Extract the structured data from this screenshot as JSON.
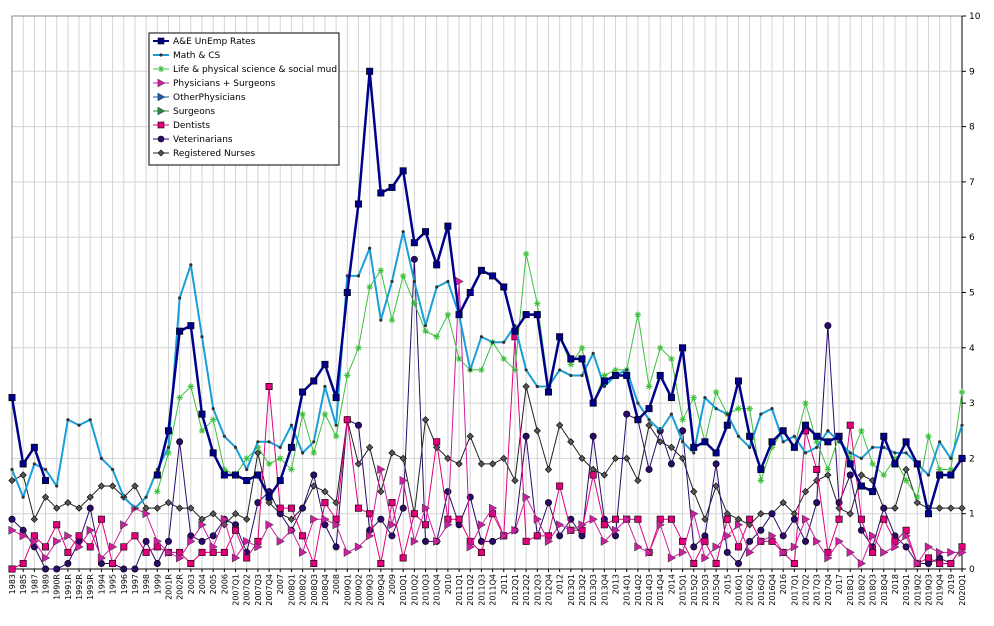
{
  "chart_data": {
    "type": "line",
    "title": "",
    "xlabel": "",
    "ylabel": "",
    "ylim": [
      0,
      10
    ],
    "y_ticks": [
      "0",
      "1",
      "2",
      "3",
      "4",
      "5",
      "6",
      "7",
      "8",
      "9",
      "10"
    ],
    "y_axis_side": "right",
    "grid": true,
    "legend_position": "top-left",
    "x_tick_labels": [
      "1983",
      "1985",
      "1987",
      "1989",
      "1990R",
      "1991R",
      "1992R",
      "1993R",
      "1994",
      "1995",
      "1996",
      "1997",
      "1998",
      "1999",
      "2001R",
      "2002R",
      "2003",
      "2004",
      "2005",
      "2006",
      "2007Q1",
      "2007Q2",
      "2007Q3",
      "2007Q4",
      "2007",
      "2008Q1",
      "2008Q2",
      "2008Q3",
      "2008Q4",
      "2008",
      "2009Q1",
      "2009Q2",
      "2009Q3",
      "2009Q4",
      "2009",
      "2010Q1",
      "2010Q2",
      "2010Q3",
      "2010Q4",
      "2010",
      "2011Q1",
      "2011Q2",
      "2011Q3",
      "2011Q4",
      "2011",
      "2012Q1",
      "2012Q2",
      "2012Q3",
      "2012Q4",
      "2012",
      "2013Q1",
      "2013Q2",
      "2013Q3",
      "2013Q4",
      "2013",
      "2014Q1",
      "2014Q2",
      "2014Q3",
      "2014Q4",
      "2014",
      "2015Q1",
      "2015Q2",
      "2015Q3",
      "2015Q4",
      "2015",
      "2016Q1",
      "2016Q2",
      "2016Q3",
      "2016Q4",
      "2016",
      "2017Q1",
      "2017Q2",
      "2017Q3",
      "2017Q4",
      "2017",
      "2018Q1",
      "2018Q2",
      "2018Q3",
      "2018Q4",
      "2018",
      "2019Q1",
      "2019Q2",
      "2019Q3",
      "2019Q4",
      "2019",
      "2020Q1"
    ],
    "series": [
      {
        "name": "A&E UnEmp Rates",
        "color": "#00008b",
        "marker": "square",
        "width": 2.5,
        "values": [
          3.1,
          1.9,
          2.2,
          1.6,
          null,
          null,
          null,
          null,
          null,
          null,
          null,
          null,
          null,
          1.7,
          2.5,
          4.3,
          4.4,
          2.8,
          2.1,
          1.7,
          1.7,
          1.6,
          1.7,
          1.3,
          1.6,
          2.2,
          3.2,
          3.4,
          3.7,
          3.1,
          5.0,
          6.6,
          9.0,
          6.8,
          6.9,
          7.2,
          5.9,
          6.1,
          5.5,
          6.2,
          4.6,
          5.0,
          5.4,
          5.3,
          5.1,
          4.3,
          4.6,
          4.6,
          3.2,
          4.2,
          3.8,
          3.8,
          3.0,
          3.4,
          3.5,
          3.5,
          2.7,
          2.9,
          3.5,
          3.1,
          4.0,
          2.2,
          2.3,
          2.1,
          2.6,
          3.4,
          2.4,
          1.8,
          2.3,
          2.5,
          2.2,
          2.6,
          2.4,
          2.3,
          2.4,
          1.9,
          1.5,
          1.4,
          2.4,
          1.9,
          2.3,
          1.9,
          1.0,
          1.7,
          1.7,
          2.0
        ]
      },
      {
        "name": "Math & CS",
        "color": "#1a9ed8",
        "marker": "dot",
        "width": 2,
        "values": [
          1.8,
          1.3,
          1.9,
          1.8,
          1.5,
          2.7,
          2.6,
          2.7,
          2.0,
          1.8,
          1.3,
          1.1,
          1.3,
          1.8,
          2.2,
          4.9,
          5.5,
          4.2,
          2.9,
          2.4,
          2.2,
          1.8,
          2.3,
          2.3,
          2.2,
          2.6,
          2.1,
          2.3,
          3.3,
          2.6,
          5.3,
          5.3,
          5.8,
          4.5,
          5.2,
          6.1,
          5.2,
          4.4,
          5.1,
          5.2,
          4.6,
          3.6,
          4.2,
          4.1,
          4.1,
          4.4,
          3.6,
          3.3,
          3.3,
          3.6,
          3.5,
          3.5,
          3.9,
          3.3,
          3.5,
          3.6,
          3.0,
          2.7,
          2.5,
          2.8,
          2.3,
          2.1,
          3.1,
          2.9,
          2.8,
          2.4,
          2.2,
          2.8,
          2.9,
          2.3,
          2.4,
          2.1,
          2.2,
          2.5,
          2.3,
          2.1,
          2.0,
          2.2,
          2.2,
          2.1,
          2.1,
          1.9,
          1.7,
          2.3,
          2.0,
          2.6
        ]
      },
      {
        "name": "Life & physical science & social mud",
        "color": "#3cbf3c",
        "marker": "star",
        "width": 1,
        "values": [
          null,
          null,
          null,
          null,
          null,
          null,
          null,
          null,
          null,
          null,
          null,
          null,
          null,
          1.4,
          2.1,
          3.1,
          3.3,
          2.5,
          2.7,
          1.8,
          1.7,
          2.0,
          2.2,
          1.9,
          2.0,
          1.8,
          2.8,
          2.1,
          2.8,
          2.4,
          3.5,
          4.0,
          5.1,
          5.4,
          4.5,
          5.3,
          4.8,
          4.3,
          4.2,
          4.6,
          3.8,
          3.6,
          3.6,
          4.1,
          3.8,
          3.6,
          5.7,
          4.8,
          3.3,
          4.2,
          3.7,
          4.0,
          3.0,
          3.5,
          3.6,
          3.6,
          4.6,
          3.3,
          4.0,
          3.8,
          2.7,
          3.1,
          2.3,
          3.2,
          2.8,
          2.9,
          2.9,
          1.6,
          2.2,
          2.5,
          2.2,
          3.0,
          2.3,
          1.8,
          2.4,
          2.0,
          2.5,
          1.9,
          1.7,
          2.0,
          1.6,
          1.3,
          2.4,
          1.8,
          1.8,
          3.2
        ]
      },
      {
        "name": "Physicians + Surgeons",
        "color": "#cc1f9f",
        "marker": "triangle-right",
        "width": 1,
        "values": [
          0.7,
          0.6,
          0.5,
          0.2,
          0.5,
          0.6,
          0.4,
          0.7,
          0.2,
          0.4,
          0.8,
          1.1,
          1.0,
          0.5,
          0.3,
          0.2,
          0.5,
          0.8,
          0.4,
          0.9,
          0.2,
          0.5,
          0.4,
          0.8,
          0.5,
          0.7,
          0.3,
          0.9,
          0.9,
          0.8,
          0.3,
          0.4,
          0.6,
          1.8,
          0.8,
          1.6,
          0.5,
          1.1,
          0.5,
          0.8,
          5.2,
          0.4,
          0.8,
          1.1,
          0.6,
          0.7,
          1.3,
          0.9,
          0.5,
          0.8,
          0.7,
          0.8,
          0.9,
          0.5,
          0.7,
          0.9,
          0.4,
          0.3,
          0.8,
          0.2,
          0.3,
          1.0,
          0.2,
          0.4,
          0.6,
          0.8,
          0.3,
          0.5,
          0.6,
          0.3,
          0.4,
          0.9,
          0.5,
          0.2,
          0.5,
          0.3,
          0.1,
          0.6,
          0.3,
          0.4,
          0.6,
          0.1,
          0.4,
          0.3,
          0.3,
          0.3
        ]
      },
      {
        "name": "OtherPhysicians",
        "color": "#1a5aa8",
        "marker": "triangle-right",
        "width": 1,
        "values": []
      },
      {
        "name": "Surgeons",
        "color": "#2a8a3a",
        "marker": "triangle-right",
        "width": 1,
        "values": []
      },
      {
        "name": "Dentists",
        "color": "#e0007a",
        "marker": "square",
        "width": 1,
        "values": [
          0.0,
          0.1,
          0.6,
          0.4,
          0.8,
          0.3,
          0.6,
          0.4,
          0.9,
          0.1,
          0.4,
          0.6,
          0.3,
          0.4,
          0.3,
          0.3,
          0.1,
          0.3,
          0.3,
          0.3,
          0.7,
          0.2,
          0.5,
          3.3,
          1.1,
          1.1,
          0.6,
          0.1,
          1.2,
          0.9,
          2.7,
          1.1,
          1.0,
          0.1,
          1.2,
          0.2,
          1.0,
          0.8,
          2.3,
          0.9,
          0.9,
          0.5,
          0.3,
          1.0,
          0.6,
          4.2,
          0.5,
          0.6,
          0.6,
          1.5,
          0.7,
          0.7,
          1.7,
          0.8,
          0.9,
          0.9,
          0.9,
          0.3,
          0.9,
          0.9,
          0.5,
          0.1,
          0.5,
          0.1,
          0.9,
          0.4,
          0.9,
          0.5,
          0.5,
          0.3,
          0.1,
          2.5,
          1.8,
          0.3,
          0.9,
          2.6,
          0.9,
          0.3,
          0.9,
          0.5,
          0.7,
          0.1,
          0.2,
          0.1,
          0.1,
          0.4
        ]
      },
      {
        "name": "Veterinarians",
        "color": "#2a0a6b",
        "marker": "circle",
        "width": 1,
        "values": [
          0.9,
          0.7,
          0.4,
          0.0,
          0.0,
          0.1,
          0.5,
          1.1,
          0.1,
          0.1,
          0.0,
          0.0,
          0.5,
          0.1,
          0.5,
          2.3,
          0.6,
          0.5,
          0.6,
          0.9,
          0.8,
          0.3,
          1.2,
          1.4,
          1.0,
          0.7,
          1.1,
          1.7,
          0.8,
          0.4,
          2.7,
          2.6,
          0.7,
          0.9,
          0.6,
          1.1,
          5.6,
          0.5,
          0.5,
          1.4,
          0.8,
          1.3,
          0.5,
          0.5,
          0.6,
          0.7,
          2.4,
          0.6,
          1.2,
          0.6,
          0.9,
          0.6,
          2.4,
          0.9,
          0.6,
          2.8,
          2.7,
          1.8,
          2.5,
          1.9,
          2.5,
          0.4,
          0.6,
          1.9,
          0.3,
          0.1,
          0.5,
          0.7,
          1.0,
          0.6,
          0.9,
          0.5,
          1.2,
          4.4,
          1.2,
          1.7,
          0.7,
          0.4,
          1.1,
          0.6,
          0.4,
          0.1,
          0.1,
          0.2,
          0.1,
          0.4
        ]
      },
      {
        "name": "Registered Nurses",
        "color": "#222222",
        "marker": "diamond",
        "width": 1,
        "values": [
          1.6,
          1.7,
          0.9,
          1.3,
          1.1,
          1.2,
          1.1,
          1.3,
          1.5,
          1.5,
          1.3,
          1.5,
          1.1,
          1.1,
          1.2,
          1.1,
          1.1,
          0.9,
          1.0,
          0.8,
          1.0,
          0.9,
          2.1,
          1.2,
          1.0,
          0.9,
          1.1,
          1.5,
          1.4,
          1.2,
          2.7,
          1.9,
          2.2,
          1.4,
          2.1,
          2.0,
          1.0,
          2.7,
          2.2,
          2.0,
          1.9,
          2.4,
          1.9,
          1.9,
          2.0,
          1.6,
          3.3,
          2.5,
          1.8,
          2.6,
          2.3,
          2.0,
          1.8,
          1.7,
          2.0,
          2.0,
          1.6,
          2.6,
          2.3,
          2.2,
          2.0,
          1.4,
          0.9,
          1.5,
          1.0,
          0.9,
          0.8,
          1.0,
          1.0,
          1.2,
          1.0,
          1.4,
          1.6,
          1.7,
          1.1,
          1.0,
          1.7,
          1.6,
          1.1,
          1.1,
          1.8,
          1.2,
          1.1,
          1.1,
          1.1,
          1.1
        ]
      }
    ]
  }
}
